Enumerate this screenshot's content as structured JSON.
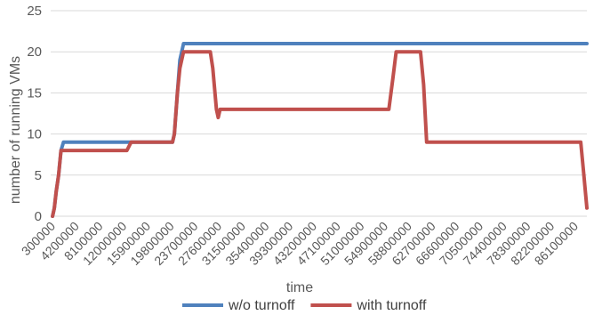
{
  "chart_data": {
    "type": "line",
    "xlabel": "time",
    "ylabel": "number of running VMs",
    "ylim": [
      0,
      25
    ],
    "yticks": [
      0,
      5,
      10,
      15,
      20,
      25
    ],
    "xlim": [
      0,
      88000000
    ],
    "xticks": [
      300000,
      4200000,
      8100000,
      12000000,
      15900000,
      19800000,
      23700000,
      27600000,
      31500000,
      35400000,
      39300000,
      43200000,
      47100000,
      51000000,
      54900000,
      58800000,
      62700000,
      66600000,
      70500000,
      74400000,
      78300000,
      82200000,
      86100000
    ],
    "grid": true,
    "legend": "bottom",
    "series": [
      {
        "name": "w/o turnoff",
        "color": "#4F81BD",
        "points": [
          [
            300000,
            0
          ],
          [
            600000,
            1
          ],
          [
            900000,
            3
          ],
          [
            1300000,
            5
          ],
          [
            1700000,
            8
          ],
          [
            2100000,
            9
          ],
          [
            20000000,
            9
          ],
          [
            20300000,
            10
          ],
          [
            20800000,
            15
          ],
          [
            21200000,
            19
          ],
          [
            21800000,
            21
          ],
          [
            88000000,
            21
          ]
        ]
      },
      {
        "name": "with turnoff",
        "color": "#C0504D",
        "points": [
          [
            300000,
            0
          ],
          [
            600000,
            1
          ],
          [
            900000,
            3
          ],
          [
            1300000,
            5
          ],
          [
            1700000,
            8
          ],
          [
            12500000,
            8
          ],
          [
            13200000,
            9
          ],
          [
            20000000,
            9
          ],
          [
            20300000,
            10
          ],
          [
            20800000,
            15
          ],
          [
            21200000,
            18
          ],
          [
            21800000,
            20
          ],
          [
            26200000,
            20
          ],
          [
            26600000,
            18
          ],
          [
            27200000,
            13
          ],
          [
            27500000,
            12
          ],
          [
            27800000,
            13
          ],
          [
            55500000,
            13
          ],
          [
            56200000,
            17
          ],
          [
            56700000,
            20
          ],
          [
            60700000,
            20
          ],
          [
            61200000,
            16
          ],
          [
            61700000,
            9
          ],
          [
            87000000,
            9
          ],
          [
            87500000,
            5
          ],
          [
            88000000,
            1
          ]
        ]
      }
    ]
  }
}
